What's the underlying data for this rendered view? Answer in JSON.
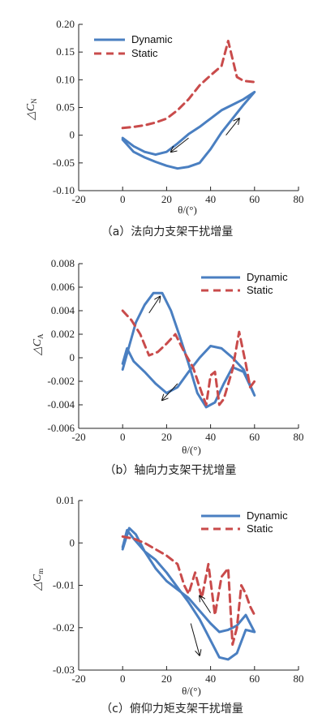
{
  "colors": {
    "dynamic": "#4a7fc1",
    "static": "#c94b4b",
    "axis": "#222222"
  },
  "chart_data": [
    {
      "type": "line",
      "title": "",
      "caption": "（a）法向力支架干扰增量",
      "xlabel": "θ/(°)",
      "ylabel_base": "△C",
      "ylabel_sub": "N",
      "xlim": [
        -20,
        80
      ],
      "ylim": [
        -0.1,
        0.2
      ],
      "xticks": [
        -20,
        0,
        20,
        40,
        60,
        80
      ],
      "yticks": [
        -0.1,
        -0.05,
        0,
        0.05,
        0.1,
        0.15,
        0.2
      ],
      "ytick_labels": [
        "-0.10",
        "-0.05",
        "0",
        "0.05",
        "0.10",
        "0.15",
        "0.20"
      ],
      "legend_position": "top-left",
      "series": [
        {
          "name": "Dynamic",
          "style": "solid",
          "x": [
            0,
            5,
            10,
            15,
            20,
            25,
            30,
            35,
            40,
            45,
            50,
            55,
            60,
            55,
            50,
            45,
            40,
            35,
            30,
            25,
            20,
            15,
            10,
            5,
            0
          ],
          "y": [
            -0.005,
            -0.02,
            -0.03,
            -0.035,
            -0.03,
            -0.015,
            0.002,
            0.015,
            0.03,
            0.045,
            0.055,
            0.065,
            0.078,
            0.055,
            0.03,
            0.005,
            -0.025,
            -0.05,
            -0.057,
            -0.06,
            -0.055,
            -0.048,
            -0.04,
            -0.03,
            -0.008
          ]
        },
        {
          "name": "Static",
          "style": "dashed",
          "x": [
            0,
            5,
            10,
            15,
            20,
            25,
            30,
            35,
            40,
            45,
            48,
            52,
            55,
            60
          ],
          "y": [
            0.013,
            0.015,
            0.018,
            0.023,
            0.03,
            0.045,
            0.065,
            0.09,
            0.108,
            0.125,
            0.17,
            0.105,
            0.098,
            0.096
          ]
        }
      ],
      "arrows": [
        {
          "from": [
            30,
            -0.005
          ],
          "to": [
            22,
            -0.03
          ]
        },
        {
          "from": [
            47,
            0.0
          ],
          "to": [
            53,
            0.03
          ]
        }
      ]
    },
    {
      "type": "line",
      "title": "",
      "caption": "（b）轴向力支架干扰增量",
      "xlabel": "θ/(°)",
      "ylabel_base": "△C",
      "ylabel_sub": "A",
      "xlim": [
        -20,
        80
      ],
      "ylim": [
        -0.006,
        0.008
      ],
      "xticks": [
        -20,
        0,
        20,
        40,
        60,
        80
      ],
      "yticks": [
        -0.006,
        -0.004,
        -0.002,
        0,
        0.002,
        0.004,
        0.006,
        0.008
      ],
      "ytick_labels": [
        "-0.006",
        "-0.004",
        "-0.002",
        "0",
        "0.002",
        "0.004",
        "0.006",
        "0.008"
      ],
      "legend_position": "top-right",
      "series": [
        {
          "name": "Dynamic",
          "style": "solid",
          "x": [
            0,
            3,
            6,
            10,
            14,
            18,
            22,
            26,
            30,
            34,
            38,
            42,
            46,
            50,
            55,
            60,
            55,
            50,
            45,
            40,
            35,
            30,
            25,
            20,
            15,
            10,
            5,
            2,
            0
          ],
          "y": [
            -0.001,
            0.001,
            0.003,
            0.0045,
            0.0055,
            0.0055,
            0.004,
            0.0018,
            -0.0005,
            -0.003,
            -0.0042,
            -0.0038,
            -0.0022,
            -0.0008,
            -0.0012,
            -0.0032,
            -0.001,
            0.0,
            0.0008,
            0.001,
            0.0,
            -0.0012,
            -0.0025,
            -0.003,
            -0.0022,
            -0.0012,
            -0.0003,
            0.0008,
            -0.0005
          ]
        },
        {
          "name": "Static",
          "style": "dashed",
          "x": [
            0,
            4,
            8,
            12,
            16,
            20,
            24,
            28,
            32,
            36,
            38,
            40,
            42,
            44,
            46,
            50,
            53,
            56,
            58,
            60
          ],
          "y": [
            0.004,
            0.0032,
            0.002,
            0.0002,
            0.0005,
            0.0012,
            0.002,
            0.0005,
            -0.0008,
            -0.003,
            -0.004,
            -0.0015,
            -0.0012,
            -0.004,
            -0.0035,
            -0.001,
            0.0022,
            -0.0005,
            -0.0025,
            -0.002
          ]
        }
      ],
      "arrows": [
        {
          "from": [
            12,
            0.0038
          ],
          "to": [
            17,
            0.0052
          ]
        },
        {
          "from": [
            25,
            -0.0022
          ],
          "to": [
            18,
            -0.0036
          ]
        }
      ]
    },
    {
      "type": "line",
      "title": "",
      "caption": "（c）俯仰力矩支架干扰增量",
      "xlabel": "θ/(°)",
      "ylabel_base": "△C",
      "ylabel_sub": "m",
      "xlim": [
        -20,
        80
      ],
      "ylim": [
        -0.03,
        0.01
      ],
      "xticks": [
        -20,
        0,
        20,
        40,
        60,
        80
      ],
      "yticks": [
        -0.03,
        -0.02,
        -0.01,
        0,
        0.01
      ],
      "ytick_labels": [
        "-0.03",
        "-0.02",
        "-0.01",
        "0",
        "0.01"
      ],
      "legend_position": "top-right",
      "series": [
        {
          "name": "Dynamic",
          "style": "solid",
          "x": [
            0,
            3,
            6,
            10,
            15,
            20,
            25,
            30,
            35,
            40,
            44,
            48,
            52,
            56,
            60,
            56,
            52,
            48,
            44,
            40,
            35,
            30,
            25,
            20,
            15,
            10,
            5,
            2,
            0
          ],
          "y": [
            -0.0015,
            0.0035,
            0.002,
            -0.002,
            -0.006,
            -0.009,
            -0.011,
            -0.013,
            -0.016,
            -0.019,
            -0.021,
            -0.0205,
            -0.0195,
            -0.017,
            -0.021,
            -0.0205,
            -0.026,
            -0.0275,
            -0.027,
            -0.023,
            -0.018,
            -0.014,
            -0.0105,
            -0.007,
            -0.004,
            -0.002,
            0.001,
            0.003,
            -0.001
          ]
        },
        {
          "name": "Static",
          "style": "dashed",
          "x": [
            0,
            5,
            10,
            15,
            20,
            25,
            28,
            30,
            33,
            36,
            39,
            42,
            45,
            48,
            50,
            52,
            54,
            56,
            58,
            60
          ],
          "y": [
            0.0015,
            0.001,
            0.0,
            -0.0015,
            -0.003,
            -0.005,
            -0.01,
            -0.012,
            -0.007,
            -0.013,
            -0.005,
            -0.017,
            -0.008,
            -0.006,
            -0.024,
            -0.02,
            -0.01,
            -0.012,
            -0.015,
            -0.017
          ]
        }
      ],
      "arrows": [
        {
          "from": [
            40,
            -0.0165
          ],
          "to": [
            35,
            -0.0125
          ]
        },
        {
          "from": [
            31,
            -0.019
          ],
          "to": [
            35,
            -0.0265
          ]
        }
      ]
    }
  ]
}
